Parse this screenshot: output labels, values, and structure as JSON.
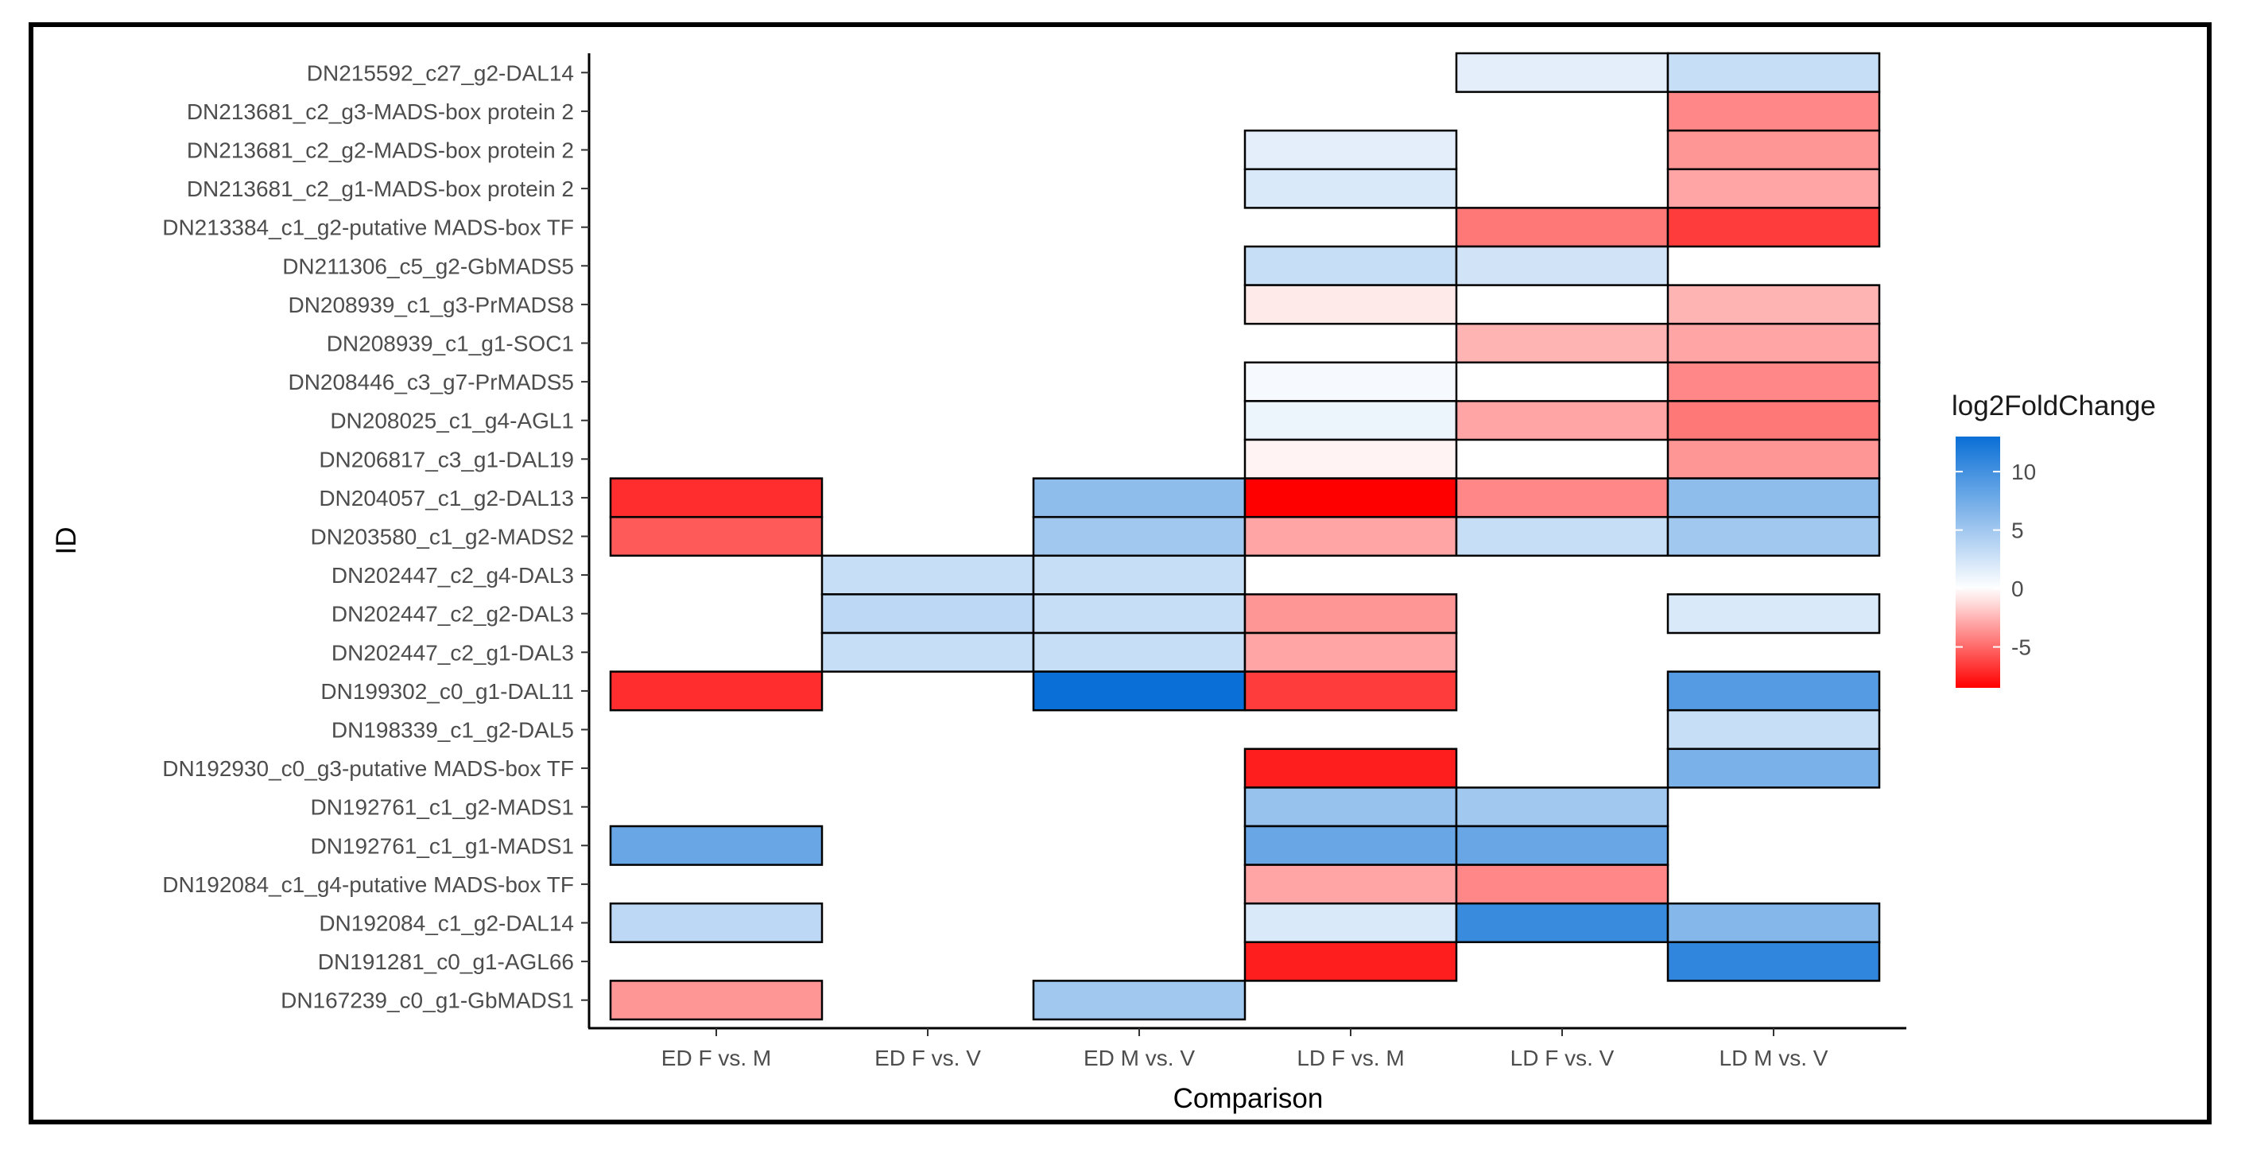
{
  "chart_data": {
    "type": "heatmap",
    "xlabel": "Comparison",
    "ylabel": "ID",
    "legend_title": "log2FoldChange",
    "legend_placement": "right",
    "legend_ticks": [
      "10",
      "5",
      "0",
      "-5"
    ],
    "legend_tick_values": [
      10,
      5,
      0,
      -5
    ],
    "color_low": "#ff0000",
    "color_mid": "#ffffff",
    "color_high": "#0a6fd6",
    "value_range": [
      -8.5,
      13
    ],
    "categories_x": [
      "ED F vs. M",
      "ED F vs. V",
      "ED M vs. V",
      "LD F vs. M",
      "LD F vs. V",
      "LD M vs. V"
    ],
    "categories_y": [
      "DN215592_c27_g2-DAL14",
      "DN213681_c2_g3-MADS-box protein 2",
      "DN213681_c2_g2-MADS-box protein 2",
      "DN213681_c2_g1-MADS-box protein 2",
      "DN213384_c1_g2-putative MADS-box TF",
      "DN211306_c5_g2-GbMADS5",
      "DN208939_c1_g3-PrMADS8",
      "DN208939_c1_g1-SOC1",
      "DN208446_c3_g7-PrMADS5",
      "DN208025_c1_g4-AGL1",
      "DN206817_c3_g1-DAL19",
      "DN204057_c1_g2-DAL13",
      "DN203580_c1_g2-MADS2",
      "DN202447_c2_g4-DAL3",
      "DN202447_c2_g2-DAL3",
      "DN202447_c2_g1-DAL3",
      "DN199302_c0_g1-DAL11",
      "DN198339_c1_g2-DAL5",
      "DN192930_c0_g3-putative MADS-box TF",
      "DN192761_c1_g2-MADS1",
      "DN192761_c1_g1-MADS1",
      "DN192084_c1_g4-putative MADS-box TF",
      "DN192084_c1_g2-DAL14",
      "DN191281_c0_g1-AGL66",
      "DN167239_c0_g1-GbMADS1"
    ],
    "cells": [
      {
        "row": 0,
        "col": 4,
        "value": 1.5
      },
      {
        "row": 0,
        "col": 5,
        "value": 3
      },
      {
        "row": 1,
        "col": 5,
        "value": -4
      },
      {
        "row": 2,
        "col": 3,
        "value": 1.5
      },
      {
        "row": 2,
        "col": 5,
        "value": -3.5
      },
      {
        "row": 3,
        "col": 3,
        "value": 2
      },
      {
        "row": 3,
        "col": 5,
        "value": -3
      },
      {
        "row": 4,
        "col": 4,
        "value": -4.5
      },
      {
        "row": 4,
        "col": 5,
        "value": -6.5
      },
      {
        "row": 5,
        "col": 3,
        "value": 3
      },
      {
        "row": 5,
        "col": 4,
        "value": 2.5
      },
      {
        "row": 6,
        "col": 3,
        "value": -0.7
      },
      {
        "row": 6,
        "col": 5,
        "value": -2.5
      },
      {
        "row": 7,
        "col": 4,
        "value": -2.5
      },
      {
        "row": 7,
        "col": 5,
        "value": -3
      },
      {
        "row": 8,
        "col": 3,
        "value": 0.5
      },
      {
        "row": 8,
        "col": 5,
        "value": -4
      },
      {
        "row": 9,
        "col": 3,
        "value": 1
      },
      {
        "row": 9,
        "col": 4,
        "value": -3
      },
      {
        "row": 9,
        "col": 5,
        "value": -4.5
      },
      {
        "row": 10,
        "col": 3,
        "value": -0.4
      },
      {
        "row": 10,
        "col": 5,
        "value": -3.5
      },
      {
        "row": 11,
        "col": 0,
        "value": -7
      },
      {
        "row": 11,
        "col": 2,
        "value": 6
      },
      {
        "row": 11,
        "col": 3,
        "value": -8.5
      },
      {
        "row": 11,
        "col": 4,
        "value": -4
      },
      {
        "row": 11,
        "col": 5,
        "value": 6
      },
      {
        "row": 12,
        "col": 0,
        "value": -5.5
      },
      {
        "row": 12,
        "col": 2,
        "value": 5
      },
      {
        "row": 12,
        "col": 3,
        "value": -3
      },
      {
        "row": 12,
        "col": 4,
        "value": 3
      },
      {
        "row": 12,
        "col": 5,
        "value": 5
      },
      {
        "row": 13,
        "col": 1,
        "value": 3
      },
      {
        "row": 13,
        "col": 2,
        "value": 3
      },
      {
        "row": 14,
        "col": 1,
        "value": 3.5
      },
      {
        "row": 14,
        "col": 2,
        "value": 3
      },
      {
        "row": 14,
        "col": 3,
        "value": -3.5
      },
      {
        "row": 14,
        "col": 5,
        "value": 2
      },
      {
        "row": 15,
        "col": 1,
        "value": 3
      },
      {
        "row": 15,
        "col": 2,
        "value": 3
      },
      {
        "row": 15,
        "col": 3,
        "value": -3
      },
      {
        "row": 16,
        "col": 0,
        "value": -7
      },
      {
        "row": 16,
        "col": 2,
        "value": 13
      },
      {
        "row": 16,
        "col": 3,
        "value": -6.5
      },
      {
        "row": 16,
        "col": 5,
        "value": 9
      },
      {
        "row": 17,
        "col": 5,
        "value": 3
      },
      {
        "row": 18,
        "col": 3,
        "value": -7.5
      },
      {
        "row": 18,
        "col": 5,
        "value": 7
      },
      {
        "row": 19,
        "col": 3,
        "value": 5.5
      },
      {
        "row": 19,
        "col": 4,
        "value": 5
      },
      {
        "row": 20,
        "col": 0,
        "value": 8
      },
      {
        "row": 20,
        "col": 3,
        "value": 8
      },
      {
        "row": 20,
        "col": 4,
        "value": 8
      },
      {
        "row": 21,
        "col": 3,
        "value": -3
      },
      {
        "row": 21,
        "col": 4,
        "value": -4
      },
      {
        "row": 22,
        "col": 0,
        "value": 3.5
      },
      {
        "row": 22,
        "col": 3,
        "value": 2
      },
      {
        "row": 22,
        "col": 4,
        "value": 10.5
      },
      {
        "row": 22,
        "col": 5,
        "value": 6.5
      },
      {
        "row": 23,
        "col": 3,
        "value": -7.5
      },
      {
        "row": 23,
        "col": 5,
        "value": 11
      },
      {
        "row": 24,
        "col": 0,
        "value": -3.5
      },
      {
        "row": 24,
        "col": 2,
        "value": 5
      }
    ]
  }
}
